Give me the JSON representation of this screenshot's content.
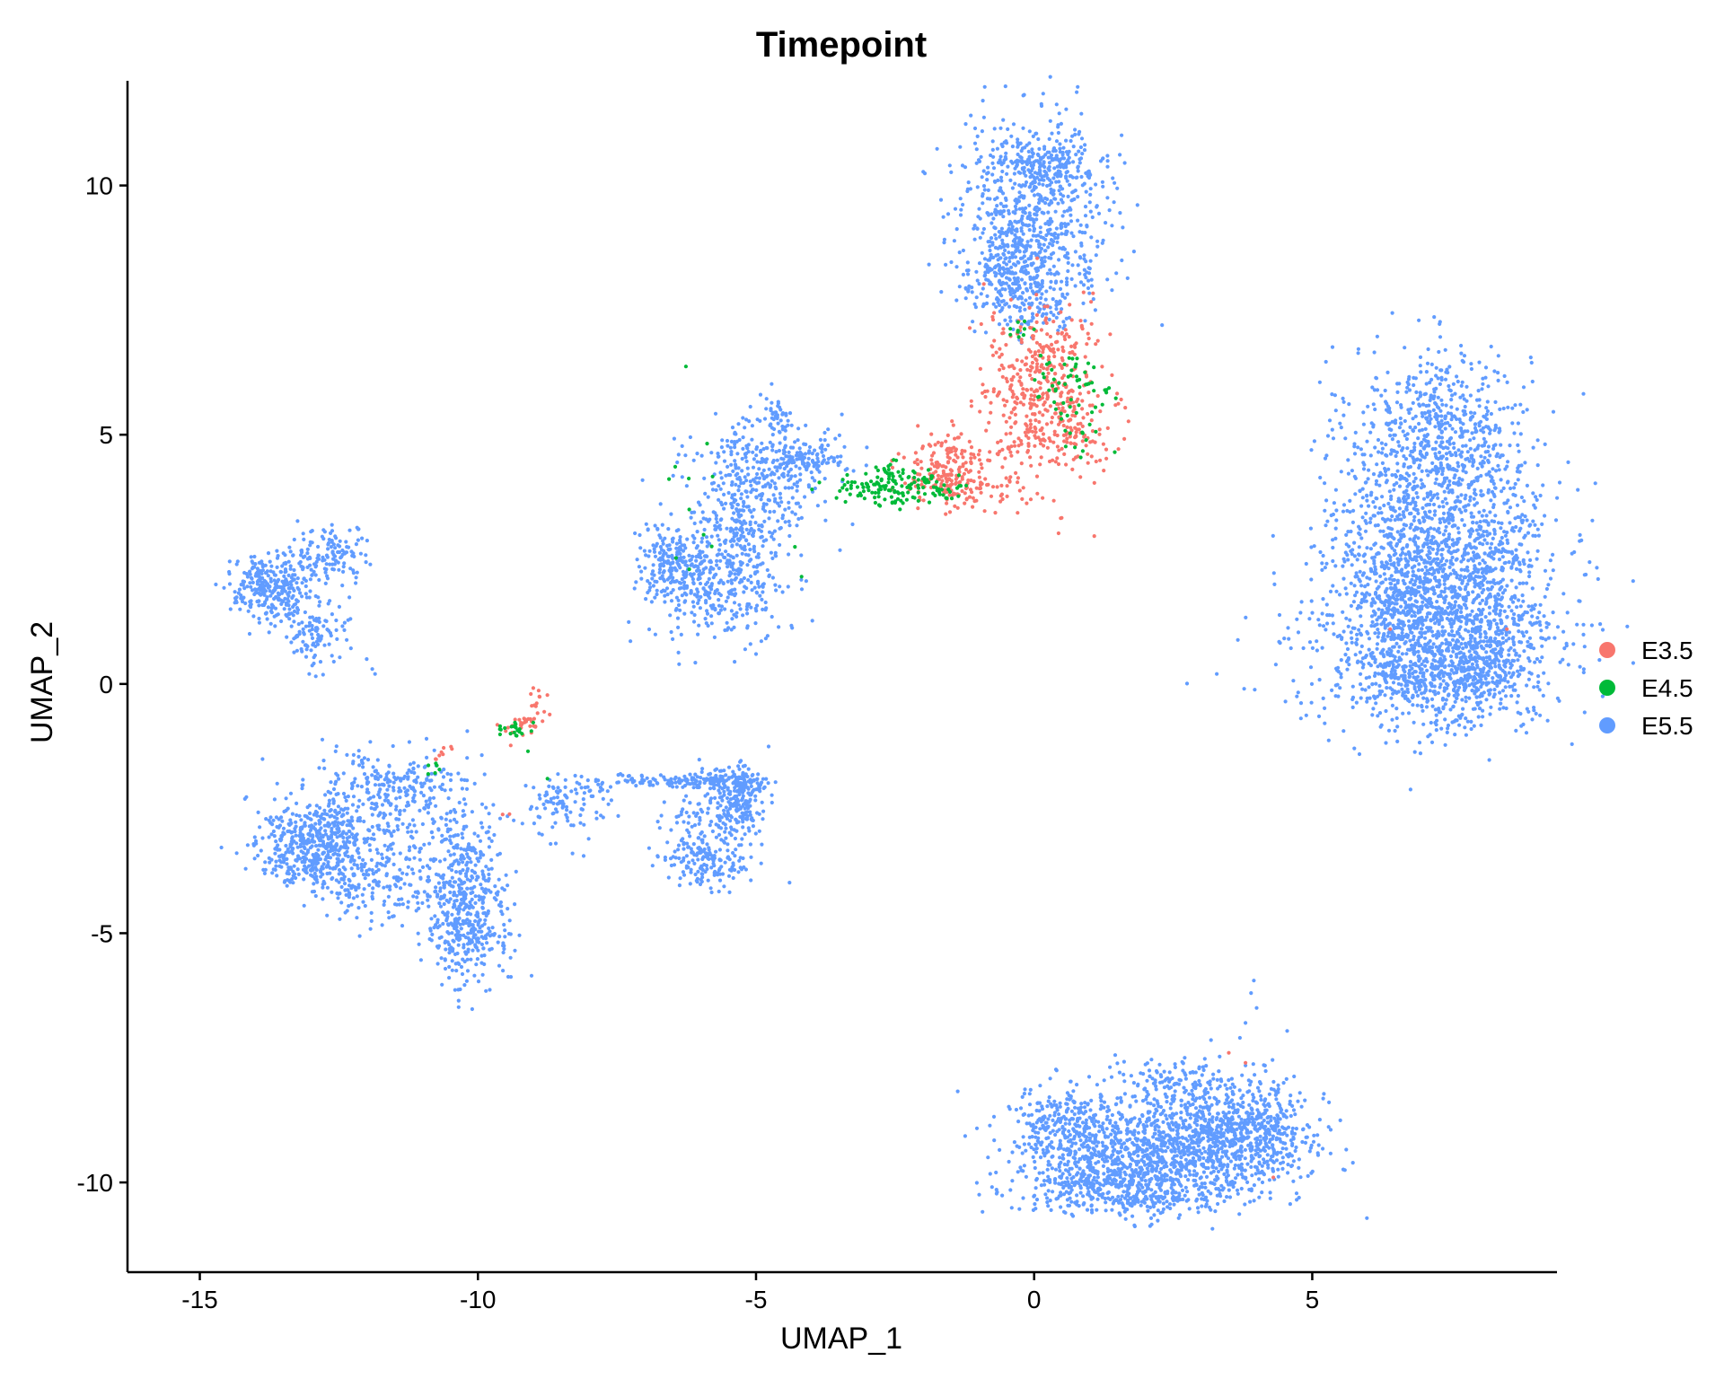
{
  "chart_data": {
    "type": "scatter",
    "title": "Timepoint",
    "xlabel": "UMAP_1",
    "ylabel": "UMAP_2",
    "xlim": [
      -16.3,
      9.4
    ],
    "ylim": [
      -11.8,
      12.1
    ],
    "xticks": [
      -15,
      -10,
      -5,
      0,
      5
    ],
    "xtick_labels": [
      "-15",
      "-10",
      "-5",
      "0",
      "5"
    ],
    "yticks": [
      -10,
      -5,
      0,
      5,
      10
    ],
    "ytick_labels": [
      "-10",
      "-5",
      "0",
      "5",
      "10"
    ],
    "grid": false,
    "legend_position": "right",
    "series": [
      {
        "name": "E3.5",
        "color": "#F8766D",
        "clusters": [
          {
            "cx": 0.1,
            "cy": 5.7,
            "sx": 0.55,
            "sy": 0.85,
            "n": 420
          },
          {
            "cx": 0.5,
            "cy": 6.9,
            "sx": 0.35,
            "sy": 0.3,
            "n": 40
          },
          {
            "cx": 0.9,
            "cy": 5.0,
            "sx": 0.3,
            "sy": 0.3,
            "n": 40
          },
          {
            "cx": -1.6,
            "cy": 4.3,
            "sx": 0.45,
            "sy": 0.35,
            "n": 170
          },
          {
            "cx": -1.0,
            "cy": 3.9,
            "sx": 0.45,
            "sy": 0.2,
            "n": 60
          },
          {
            "cx": -9.2,
            "cy": -0.85,
            "sx": 0.15,
            "sy": 0.12,
            "n": 30
          },
          {
            "cx": -8.9,
            "cy": -0.35,
            "sx": 0.08,
            "sy": 0.15,
            "n": 12
          },
          {
            "cx": -10.6,
            "cy": -1.4,
            "sx": 0.12,
            "sy": 0.08,
            "n": 8
          },
          {
            "cx": -9.5,
            "cy": -2.6,
            "sx": 0.05,
            "sy": 0.05,
            "n": 2
          }
        ],
        "points": [
          [
            3.8,
            -7.6
          ],
          [
            3.5,
            -7.4
          ],
          [
            4.3,
            -9.9
          ],
          [
            6.4,
            1.1
          ],
          [
            8.5,
            1.1
          ]
        ]
      },
      {
        "name": "E4.5",
        "color": "#00BA38",
        "clusters": [
          {
            "cx": -2.3,
            "cy": 4.0,
            "sx": 0.45,
            "sy": 0.22,
            "n": 120
          },
          {
            "cx": -3.1,
            "cy": 3.9,
            "sx": 0.4,
            "sy": 0.15,
            "n": 40
          },
          {
            "cx": 0.6,
            "cy": 6.0,
            "sx": 0.35,
            "sy": 0.4,
            "n": 45
          },
          {
            "cx": 0.9,
            "cy": 5.2,
            "sx": 0.3,
            "sy": 0.35,
            "n": 20
          },
          {
            "cx": -0.3,
            "cy": 7.1,
            "sx": 0.2,
            "sy": 0.12,
            "n": 10
          },
          {
            "cx": -9.4,
            "cy": -0.9,
            "sx": 0.2,
            "sy": 0.1,
            "n": 22
          },
          {
            "cx": -10.8,
            "cy": -1.7,
            "sx": 0.15,
            "sy": 0.05,
            "n": 6
          },
          {
            "cx": -5.5,
            "cy": 3.3,
            "sx": 0.6,
            "sy": 0.9,
            "n": 10
          }
        ],
        "points": [
          [
            1.45,
            4.65
          ],
          [
            1.3,
            5.9
          ],
          [
            -6.2,
            3.5
          ],
          [
            -9.1,
            -1.35
          ],
          [
            -8.75,
            -1.9
          ],
          [
            -6.2,
            2.3
          ],
          [
            -4.3,
            2.75
          ]
        ]
      },
      {
        "name": "E5.5",
        "color": "#619CFF",
        "clusters": [
          {
            "cx": 7.3,
            "cy": 5.2,
            "sx": 0.8,
            "sy": 0.8,
            "n": 500
          },
          {
            "cx": 7.2,
            "cy": 3.0,
            "sx": 1.0,
            "sy": 1.0,
            "n": 1000
          },
          {
            "cx": 7.3,
            "cy": 0.8,
            "sx": 1.1,
            "sy": 0.9,
            "n": 1100
          },
          {
            "cx": 6.6,
            "cy": 1.7,
            "sx": 0.35,
            "sy": 0.6,
            "n": 200
          },
          {
            "cx": 8.3,
            "cy": 2.0,
            "sx": 0.35,
            "sy": 1.2,
            "n": 200
          },
          {
            "cx": 7.4,
            "cy": 0.2,
            "sx": 0.7,
            "sy": 0.35,
            "n": 300
          },
          {
            "cx": 0.0,
            "cy": 9.5,
            "sx": 0.7,
            "sy": 0.9,
            "n": 700
          },
          {
            "cx": 0.3,
            "cy": 10.5,
            "sx": 0.4,
            "sy": 0.25,
            "n": 120
          },
          {
            "cx": -0.4,
            "cy": 8.2,
            "sx": 0.45,
            "sy": 0.4,
            "n": 220
          },
          {
            "cx": 0.0,
            "cy": 7.5,
            "sx": 0.35,
            "sy": 0.25,
            "n": 60
          },
          {
            "cx": 2.2,
            "cy": -9.4,
            "sx": 1.2,
            "sy": 0.5,
            "n": 1000
          },
          {
            "cx": 3.5,
            "cy": -8.9,
            "sx": 0.7,
            "sy": 0.55,
            "n": 500
          },
          {
            "cx": 1.6,
            "cy": -10.1,
            "sx": 0.9,
            "sy": 0.3,
            "n": 400
          },
          {
            "cx": 0.5,
            "cy": -8.8,
            "sx": 0.5,
            "sy": 0.35,
            "n": 200
          },
          {
            "cx": 2.4,
            "cy": -8.0,
            "sx": 0.6,
            "sy": 0.25,
            "n": 100
          },
          {
            "cx": 4.3,
            "cy": -9.1,
            "sx": 0.3,
            "sy": 0.35,
            "n": 80
          },
          {
            "cx": -13.0,
            "cy": -3.2,
            "sx": 0.5,
            "sy": 0.4,
            "n": 450
          },
          {
            "cx": -10.2,
            "cy": -4.8,
            "sx": 0.35,
            "sy": 0.6,
            "n": 350
          },
          {
            "cx": -10.3,
            "cy": -3.6,
            "sx": 0.4,
            "sy": 0.6,
            "n": 150
          },
          {
            "cx": -11.8,
            "cy": -3.0,
            "sx": 0.8,
            "sy": 0.8,
            "n": 300
          },
          {
            "cx": -11.5,
            "cy": -2.0,
            "sx": 0.7,
            "sy": 0.3,
            "n": 150
          },
          {
            "cx": -12.0,
            "cy": -4.0,
            "sx": 0.6,
            "sy": 0.3,
            "n": 120
          },
          {
            "cx": -5.3,
            "cy": -2.3,
            "sx": 0.25,
            "sy": 0.35,
            "n": 200
          },
          {
            "cx": -5.9,
            "cy": -3.6,
            "sx": 0.4,
            "sy": 0.25,
            "n": 150
          },
          {
            "cx": -6.0,
            "cy": -2.8,
            "sx": 0.4,
            "sy": 0.5,
            "n": 100
          },
          {
            "cx": -5.8,
            "cy": -1.95,
            "sx": 0.5,
            "sy": 0.08,
            "n": 120
          },
          {
            "cx": -8.5,
            "cy": -2.4,
            "sx": 0.35,
            "sy": 0.3,
            "n": 90
          },
          {
            "cx": -7.2,
            "cy": -1.95,
            "sx": 0.8,
            "sy": 0.08,
            "n": 60
          },
          {
            "cx": -13.7,
            "cy": 1.95,
            "sx": 0.4,
            "sy": 0.35,
            "n": 300
          },
          {
            "cx": -12.7,
            "cy": 2.6,
            "sx": 0.35,
            "sy": 0.3,
            "n": 120
          },
          {
            "cx": -13.0,
            "cy": 1.0,
            "sx": 0.3,
            "sy": 0.3,
            "n": 100
          },
          {
            "cx": -5.0,
            "cy": 4.1,
            "sx": 0.6,
            "sy": 0.6,
            "n": 350
          },
          {
            "cx": -5.8,
            "cy": 2.0,
            "sx": 0.6,
            "sy": 0.6,
            "n": 300
          },
          {
            "cx": -6.5,
            "cy": 2.5,
            "sx": 0.3,
            "sy": 0.4,
            "n": 150
          },
          {
            "cx": -5.2,
            "cy": 2.6,
            "sx": 0.35,
            "sy": 0.6,
            "n": 150
          },
          {
            "cx": -4.0,
            "cy": 4.5,
            "sx": 0.35,
            "sy": 0.2,
            "n": 90
          },
          {
            "cx": -4.6,
            "cy": 5.3,
            "sx": 0.15,
            "sy": 0.3,
            "n": 40
          }
        ],
        "points": [
          [
            -11.9,
            0.3
          ],
          [
            -12.0,
            0.5
          ],
          [
            -11.85,
            0.2
          ],
          [
            -6.5,
            0.9
          ],
          [
            -5.0,
            0.6
          ],
          [
            -5.1,
            0.8
          ],
          [
            -9.8,
            -2.6
          ],
          [
            -9.6,
            -2.7
          ],
          [
            -9.2,
            -2.8
          ],
          [
            -8.9,
            -3.0
          ],
          [
            -8.6,
            -3.2
          ],
          [
            -8.3,
            -3.4
          ],
          [
            -8.1,
            -3.45
          ],
          [
            2.3,
            7.2
          ],
          [
            1.1,
            7.5
          ],
          [
            0.9,
            8.6
          ],
          [
            1.4,
            7.9
          ],
          [
            3.9,
            -6.2
          ],
          [
            4.0,
            -6.5
          ],
          [
            3.8,
            -6.8
          ],
          [
            3.95,
            -5.95
          ],
          [
            3.7,
            -7.1
          ]
        ]
      }
    ]
  }
}
